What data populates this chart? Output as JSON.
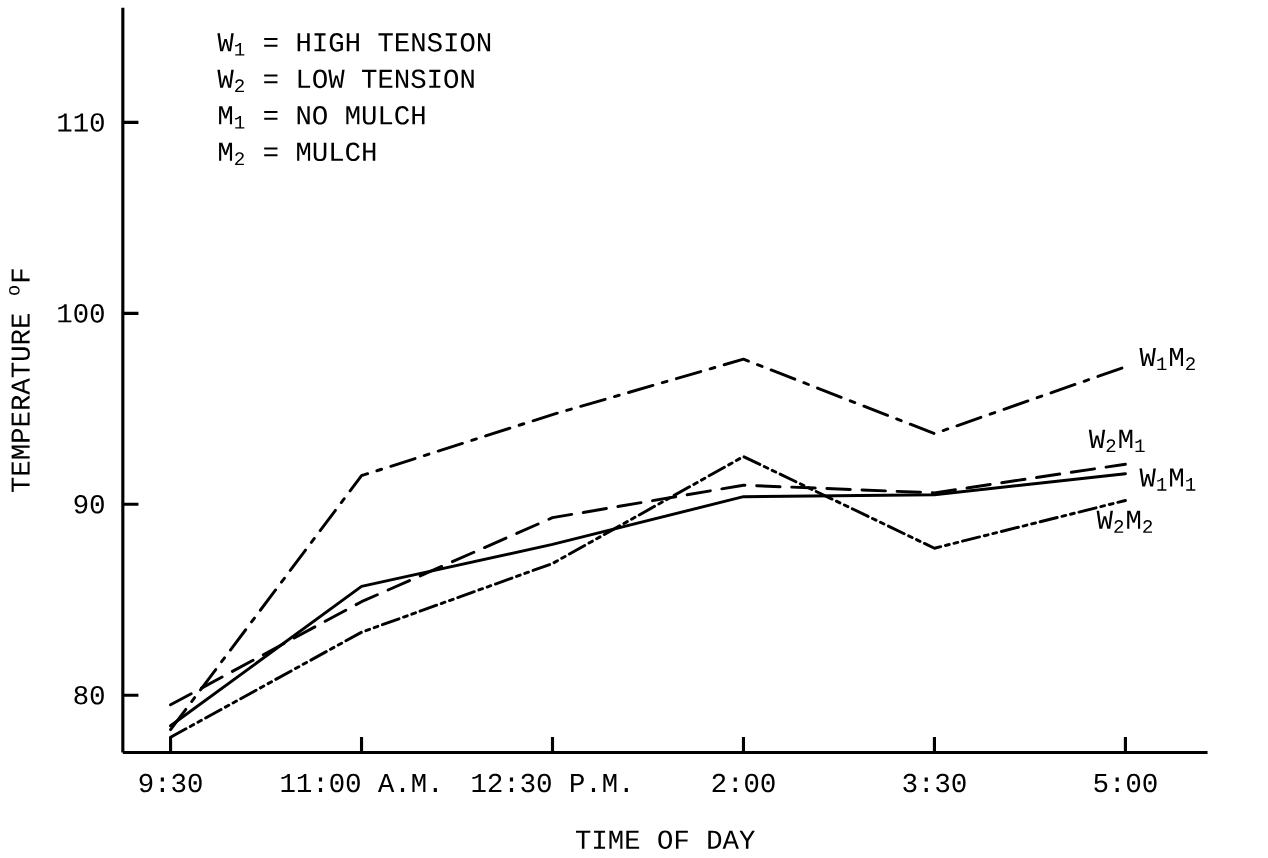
{
  "chart_data": {
    "type": "line",
    "xlabel": "TIME OF DAY",
    "ylabel": "TEMPERATURE $^{o}$F",
    "categories": [
      "9:30",
      "11:00 A.M.",
      "12:30 P.M.",
      "2:00",
      "3:30",
      "5:00"
    ],
    "ylim": [
      77,
      116
    ],
    "yticks": [
      80,
      90,
      100,
      110
    ],
    "annotations": [
      "W$_{1}$ = HIGH TENSION",
      "W$_{2}$ = LOW TENSION",
      "M$_{1}$ = NO MULCH",
      "M$_{2}$ = MULCH"
    ],
    "series": [
      {
        "name": "W$_{1}$M$_{1}$",
        "color": "#000000",
        "line_style": "solid",
        "values": [
          78.4,
          85.7,
          87.9,
          90.4,
          90.5,
          91.6
        ]
      },
      {
        "name": "W$_{2}$M$_{1}$",
        "color": "#000000",
        "line_style": "dashed",
        "values": [
          79.5,
          84.9,
          89.3,
          91.0,
          90.6,
          92.1
        ]
      },
      {
        "name": "W$_{1}$M$_{2}$",
        "color": "#000000",
        "line_style": "dashdot",
        "values": [
          78.2,
          91.5,
          94.7,
          97.6,
          93.7,
          97.2
        ]
      },
      {
        "name": "W$_{2}$M$_{2}$",
        "color": "#000000",
        "line_style": "dashdotdot",
        "values": [
          77.8,
          83.3,
          86.9,
          92.5,
          87.7,
          90.2
        ]
      }
    ]
  }
}
